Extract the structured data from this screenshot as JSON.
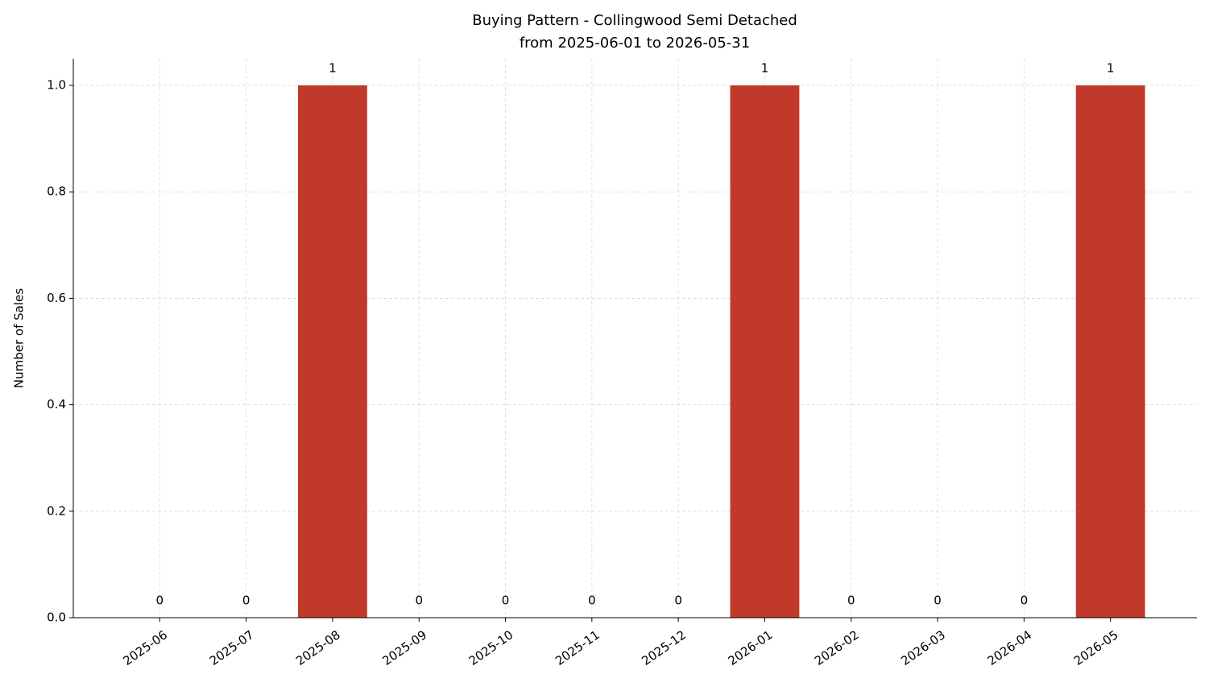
{
  "chart_data": {
    "type": "bar",
    "title": "Buying Pattern - Collingwood Semi Detached",
    "subtitle": "from 2025-06-01 to 2026-05-31",
    "y_label": "Number of Sales",
    "categories": [
      "2025-06",
      "2025-07",
      "2025-08",
      "2025-09",
      "2025-10",
      "2025-11",
      "2025-12",
      "2026-01",
      "2026-02",
      "2026-03",
      "2026-04",
      "2026-05"
    ],
    "values": [
      0,
      0,
      1,
      0,
      0,
      0,
      0,
      1,
      0,
      0,
      0,
      1
    ],
    "color": "#c0392b",
    "ylim": [
      0,
      1.05
    ],
    "yticks": [
      {
        "value": 0,
        "label": "0.0"
      },
      0.2,
      0.4,
      0.6,
      0.8,
      {
        "value": 1,
        "label": "1.0"
      }
    ],
    "grid": true
  }
}
